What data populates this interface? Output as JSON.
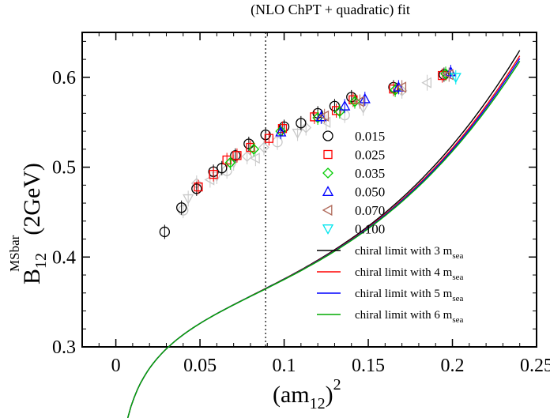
{
  "title": "(NLO ChPT + quadratic) fit",
  "chart_data": {
    "type": "scatter",
    "title": "(NLO ChPT + quadratic) fit",
    "xlabel": {
      "base": "(am",
      "sub": "12",
      "close": ")",
      "sup": "2"
    },
    "ylabel": {
      "base": "B",
      "sub": "12",
      "sup": "MSbar",
      "suffix": "(2GeV)"
    },
    "xlim": [
      -0.02,
      0.25
    ],
    "ylim": [
      0.3,
      0.65
    ],
    "xticks": [
      0,
      0.05,
      0.1,
      0.15,
      0.2,
      0.25
    ],
    "xtick_labels": [
      "0",
      "0.05",
      "0.1",
      "0.15",
      "0.2",
      "0.25"
    ],
    "yticks": [
      0.3,
      0.4,
      0.5,
      0.6
    ],
    "ytick_labels": [
      "0.3",
      "0.4",
      "0.5",
      "0.6"
    ],
    "vline_x": 0.089,
    "legend_placement": "center-right",
    "grid": false,
    "series": [
      {
        "name": "0.015",
        "marker": "circle",
        "color": "#000000",
        "points": [
          [
            0.029,
            0.428
          ],
          [
            0.039,
            0.455
          ],
          [
            0.048,
            0.476
          ],
          [
            0.058,
            0.495
          ],
          [
            0.063,
            0.499
          ],
          [
            0.071,
            0.513
          ],
          [
            0.079,
            0.526
          ],
          [
            0.089,
            0.536
          ],
          [
            0.1,
            0.545
          ],
          [
            0.11,
            0.549
          ],
          [
            0.12,
            0.56
          ],
          [
            0.13,
            0.568
          ],
          [
            0.14,
            0.578
          ],
          [
            0.165,
            0.589
          ],
          [
            0.195,
            0.603
          ]
        ]
      },
      {
        "name": "0.025",
        "marker": "square",
        "color": "#ff0000",
        "points": [
          [
            0.049,
            0.478
          ],
          [
            0.058,
            0.492
          ],
          [
            0.066,
            0.508
          ],
          [
            0.072,
            0.513
          ],
          [
            0.08,
            0.522
          ],
          [
            0.091,
            0.532
          ],
          [
            0.099,
            0.543
          ],
          [
            0.118,
            0.556
          ],
          [
            0.131,
            0.563
          ],
          [
            0.141,
            0.575
          ],
          [
            0.165,
            0.587
          ],
          [
            0.194,
            0.602
          ]
        ]
      },
      {
        "name": "0.035",
        "marker": "diamond",
        "color": "#00cc00",
        "points": [
          [
            0.068,
            0.505
          ],
          [
            0.082,
            0.52
          ],
          [
            0.098,
            0.54
          ],
          [
            0.12,
            0.555
          ],
          [
            0.133,
            0.562
          ],
          [
            0.142,
            0.573
          ],
          [
            0.166,
            0.586
          ],
          [
            0.196,
            0.604
          ]
        ]
      },
      {
        "name": "0.050",
        "marker": "triangle-up",
        "color": "#0000ff",
        "points": [
          [
            0.098,
            0.539
          ],
          [
            0.122,
            0.556
          ],
          [
            0.136,
            0.568
          ],
          [
            0.148,
            0.576
          ],
          [
            0.168,
            0.589
          ],
          [
            0.199,
            0.606
          ]
        ]
      },
      {
        "name": "0.070",
        "marker": "triangle-left",
        "color": "#b06a5a",
        "points": [
          [
            0.124,
            0.557
          ],
          [
            0.145,
            0.573
          ],
          [
            0.17,
            0.589
          ],
          [
            0.198,
            0.603
          ]
        ]
      },
      {
        "name": "0.100",
        "marker": "triangle-down",
        "color": "#00e5ee",
        "points": [
          [
            0.202,
            0.6
          ]
        ]
      }
    ],
    "faded_points": [
      [
        0.043,
        0.465
      ],
      [
        0.048,
        0.482
      ],
      [
        0.056,
        0.486
      ],
      [
        0.066,
        0.496
      ],
      [
        0.07,
        0.505
      ],
      [
        0.078,
        0.512
      ],
      [
        0.083,
        0.51
      ],
      [
        0.096,
        0.528
      ],
      [
        0.108,
        0.538
      ],
      [
        0.113,
        0.544
      ],
      [
        0.125,
        0.55
      ],
      [
        0.136,
        0.558
      ],
      [
        0.147,
        0.566
      ],
      [
        0.17,
        0.585
      ],
      [
        0.185,
        0.594
      ],
      [
        0.04,
        0.452
      ],
      [
        0.06,
        0.49
      ],
      [
        0.088,
        0.522
      ]
    ],
    "fit_lines": [
      {
        "name": "chiral limit with 3 m",
        "sub": "sea",
        "color": "#000000",
        "end_value": 0.63
      },
      {
        "name": "chiral limit with 4 m",
        "sub": "sea",
        "color": "#ff0000",
        "end_value": 0.624
      },
      {
        "name": "chiral limit with 5 m",
        "sub": "sea",
        "color": "#0000ff",
        "end_value": 0.621
      },
      {
        "name": "chiral limit with 6 m",
        "sub": "sea",
        "color": "#00aa00",
        "end_value": 0.618
      }
    ]
  }
}
